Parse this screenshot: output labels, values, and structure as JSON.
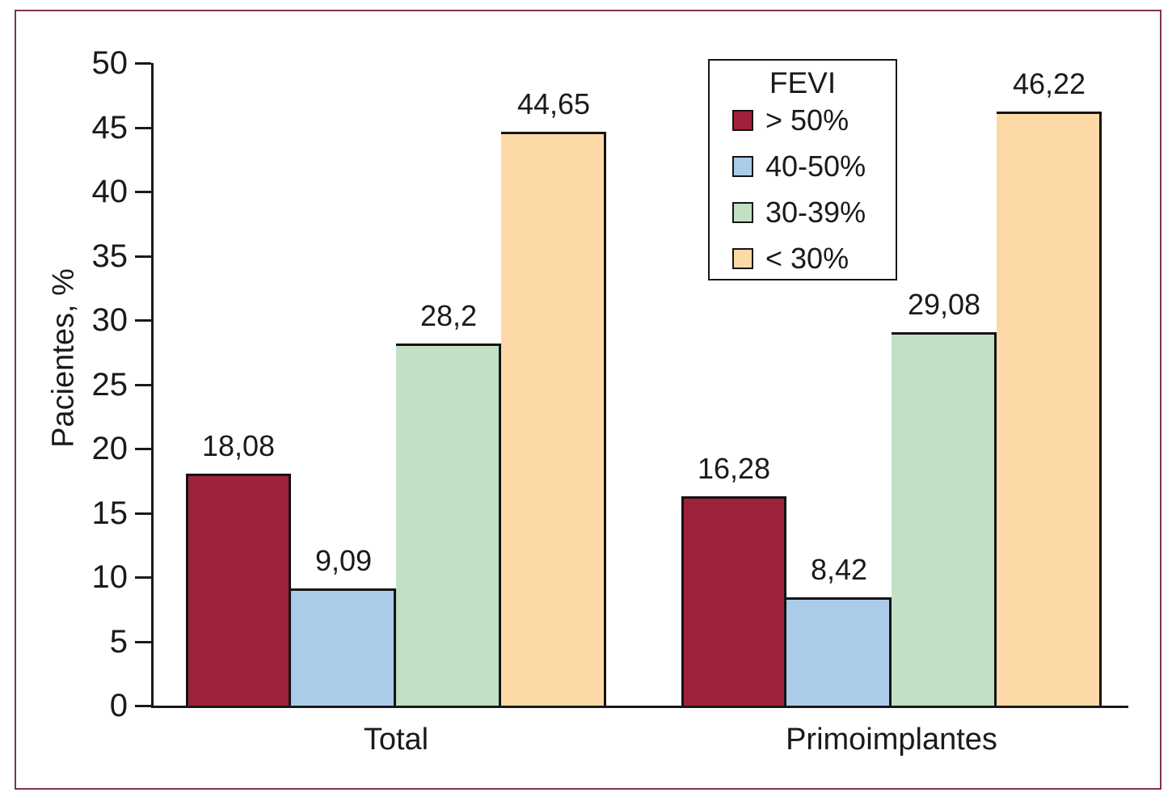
{
  "figure": {
    "border_color": "#7f3351",
    "background": "#ffffff",
    "axis_color": "#1a1a1a",
    "bar_border_color": "#141414"
  },
  "chart_data": {
    "type": "bar",
    "title": "",
    "xlabel": "",
    "ylabel": "Pacientes, %",
    "ylim": [
      0,
      50
    ],
    "yticks": [
      0,
      5,
      10,
      15,
      20,
      25,
      30,
      35,
      40,
      45,
      50
    ],
    "grid": false,
    "decimal_separator": ",",
    "legend": {
      "title": "FEVI",
      "position": "top-right-inside"
    },
    "categories": [
      "Total",
      "Primoimplantes"
    ],
    "series": [
      {
        "name": "> 50%",
        "color": "#9e2239",
        "values": [
          18.08,
          16.28
        ],
        "labels": [
          "18,08",
          "16,28"
        ]
      },
      {
        "name": "40-50%",
        "color": "#aacce8",
        "values": [
          9.09,
          8.42
        ],
        "labels": [
          "9,09",
          "8,42"
        ]
      },
      {
        "name": "30-39%",
        "color": "#c2e0c3",
        "values": [
          28.2,
          29.08
        ],
        "labels": [
          "28,2",
          "29,08"
        ]
      },
      {
        "name": "< 30%",
        "color": "#fdd9a7",
        "values": [
          44.65,
          46.22
        ],
        "labels": [
          "44,65",
          "46,22"
        ]
      }
    ]
  }
}
